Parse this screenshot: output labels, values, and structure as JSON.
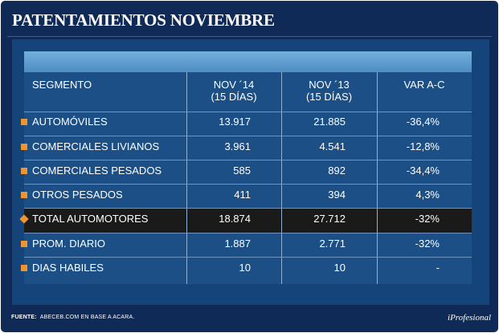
{
  "title": "PATENTAMIENTOS NOVIEMBRE",
  "chart_data": {
    "type": "table",
    "columns": [
      {
        "label": "SEGMENTO",
        "sub": ""
      },
      {
        "label": "NOV ´14",
        "sub": "(15 DÍAS)"
      },
      {
        "label": "NOV ´13",
        "sub": "(15 DÍAS)"
      },
      {
        "label": "VAR A-C",
        "sub": ""
      }
    ],
    "rows": [
      {
        "segment": "AUTOMÓVILES",
        "nov14": "13.917",
        "nov13": "21.885",
        "var": "-36,4%"
      },
      {
        "segment": "COMERCIALES LIVIANOS",
        "nov14": "3.961",
        "nov13": "4.541",
        "var": "-12,8%"
      },
      {
        "segment": "COMERCIALES PESADOS",
        "nov14": "585",
        "nov13": "892",
        "var": "-34,4%"
      },
      {
        "segment": "OTROS PESADOS",
        "nov14": "411",
        "nov13": "394",
        "var": "4,3%"
      },
      {
        "segment": "TOTAL AUTOMOTORES",
        "nov14": "18.874",
        "nov13": "27.712",
        "var": "-32%"
      },
      {
        "segment": "PROM. DIARIO",
        "nov14": "1.887",
        "nov13": "2.771",
        "var": "-32%"
      },
      {
        "segment": "DIAS HABILES",
        "nov14": "10",
        "nov13": "10",
        "var": "-"
      }
    ],
    "highlight_row": 4
  },
  "source": {
    "label": "FUENTE:",
    "text": "ABECEB.COM EN BASE A ACARA."
  },
  "brand": "iProfesional",
  "colors": {
    "background": "#0f2a56",
    "panel": "#15447a",
    "bullet": "#f0952e",
    "highlight": "#1a1a1a"
  }
}
